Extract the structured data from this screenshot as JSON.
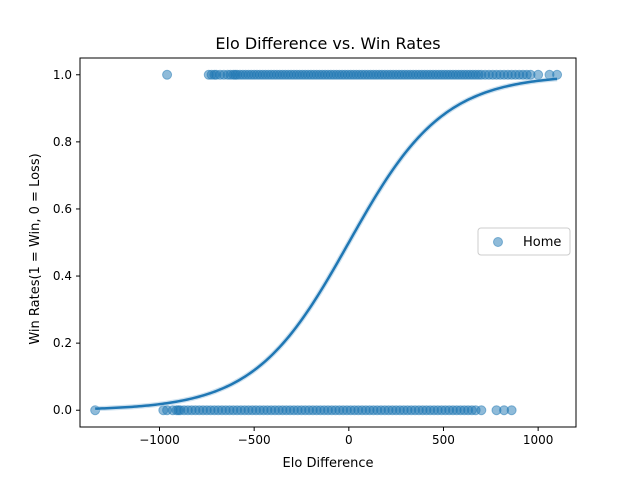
{
  "chart_data": {
    "type": "scatter",
    "title": "Elo Difference vs. Win Rates",
    "xlabel": "Elo Difference",
    "ylabel": "Win Rates(1 = Win, 0 = Loss)",
    "xlim": [
      -1420,
      1200
    ],
    "ylim": [
      -0.05,
      1.05
    ],
    "x_ticks": [
      -1000,
      -500,
      0,
      500,
      1000
    ],
    "x_tick_labels": [
      "−1000",
      "−500",
      "0",
      "500",
      "1000"
    ],
    "y_ticks": [
      0.0,
      0.2,
      0.4,
      0.6,
      0.8,
      1.0
    ],
    "y_tick_labels": [
      "0.0",
      "0.2",
      "0.4",
      "0.6",
      "0.8",
      "1.0"
    ],
    "grid": false,
    "legend": {
      "placement": "center-right",
      "entries": [
        "Home"
      ]
    },
    "series": [
      {
        "name": "Home",
        "kind": "scatter",
        "color": "#1f77b4",
        "alpha": 0.5,
        "wins_y": 1,
        "wins_x": [
          -960,
          -740,
          -725,
          -710,
          -700,
          -680,
          -660,
          -640,
          -625,
          -610,
          -600,
          -590,
          -575,
          -560,
          -545,
          -530,
          -515,
          -500,
          -485,
          -470,
          -455,
          -440,
          -425,
          -410,
          -395,
          -380,
          -365,
          -350,
          -335,
          -320,
          -305,
          -290,
          -275,
          -260,
          -245,
          -230,
          -215,
          -200,
          -185,
          -170,
          -155,
          -140,
          -125,
          -110,
          -95,
          -80,
          -65,
          -50,
          -35,
          -20,
          -5,
          10,
          25,
          40,
          55,
          70,
          85,
          100,
          115,
          130,
          145,
          160,
          175,
          190,
          205,
          220,
          235,
          250,
          265,
          280,
          295,
          310,
          325,
          340,
          355,
          370,
          385,
          400,
          415,
          430,
          445,
          460,
          475,
          490,
          505,
          520,
          535,
          550,
          565,
          580,
          595,
          610,
          625,
          640,
          655,
          670,
          685,
          700,
          720,
          740,
          760,
          780,
          800,
          820,
          840,
          860,
          880,
          900,
          920,
          940,
          960,
          1000,
          1060,
          1100
        ],
        "losses_y": 0,
        "losses_x": [
          -1340,
          -980,
          -960,
          -930,
          -910,
          -900,
          -890,
          -870,
          -850,
          -830,
          -810,
          -790,
          -770,
          -750,
          -730,
          -710,
          -690,
          -670,
          -650,
          -630,
          -610,
          -590,
          -570,
          -550,
          -530,
          -510,
          -490,
          -470,
          -450,
          -430,
          -410,
          -390,
          -370,
          -350,
          -330,
          -310,
          -290,
          -270,
          -250,
          -230,
          -210,
          -190,
          -170,
          -150,
          -130,
          -110,
          -90,
          -70,
          -50,
          -30,
          -10,
          10,
          30,
          50,
          70,
          90,
          110,
          130,
          150,
          170,
          190,
          210,
          230,
          250,
          270,
          290,
          310,
          330,
          350,
          370,
          390,
          410,
          430,
          450,
          470,
          490,
          510,
          530,
          550,
          570,
          590,
          610,
          630,
          650,
          670,
          700,
          780,
          820,
          860
        ]
      },
      {
        "kind": "logistic-fit",
        "color": "#1f77b4",
        "scale": 250,
        "x_range": [
          -1340,
          1100
        ]
      }
    ]
  }
}
